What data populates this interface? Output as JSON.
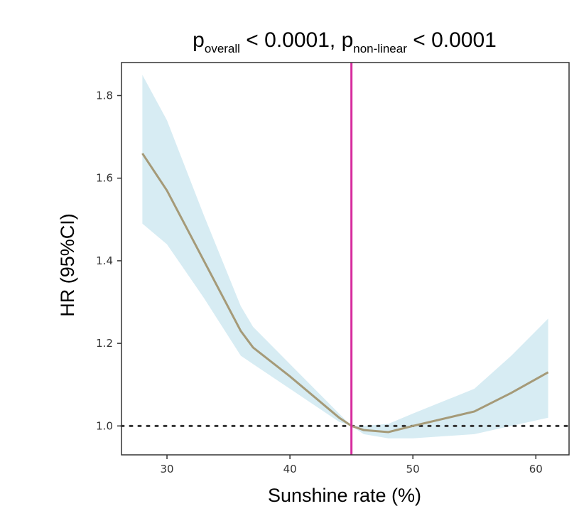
{
  "chart_data": {
    "type": "line",
    "title": {
      "p1_base": "p",
      "p1_sub": "overall",
      "p1_rest": " < 0.0001, ",
      "p2_base": "p",
      "p2_sub": "non-linear",
      "p2_rest": " < 0.0001"
    },
    "xlabel": "Sunshine rate (%)",
    "ylabel": "HR (95%CI)",
    "xlim": [
      26.3,
      62.7
    ],
    "ylim": [
      0.93,
      1.88
    ],
    "x_ticks": [
      30,
      40,
      50,
      60
    ],
    "y_ticks": [
      1.0,
      1.2,
      1.4,
      1.6,
      1.8
    ],
    "y_tick_labels": [
      "1.0",
      "1.2",
      "1.4",
      "1.6",
      "1.8"
    ],
    "reference_x": 45,
    "reference_y": 1.0,
    "series": [
      {
        "name": "HR",
        "x": [
          28,
          30,
          33,
          36,
          37,
          40,
          44,
          45,
          46,
          48,
          50,
          55,
          58,
          61
        ],
        "y": [
          1.66,
          1.57,
          1.4,
          1.23,
          1.19,
          1.12,
          1.02,
          1.0,
          0.99,
          0.985,
          1.0,
          1.035,
          1.08,
          1.13
        ],
        "lower": [
          1.49,
          1.44,
          1.31,
          1.17,
          1.15,
          1.09,
          1.01,
          1.0,
          0.98,
          0.97,
          0.97,
          0.98,
          1.0,
          1.02
        ],
        "upper": [
          1.85,
          1.74,
          1.51,
          1.29,
          1.24,
          1.15,
          1.03,
          1.0,
          1.0,
          1.005,
          1.03,
          1.09,
          1.17,
          1.26
        ]
      }
    ],
    "colors": {
      "line": "#a59a78",
      "band": "#d7ecf3",
      "reference_vertical": "#d62d9e",
      "reference_horizontal": "#333333",
      "axis": "#333333"
    }
  }
}
